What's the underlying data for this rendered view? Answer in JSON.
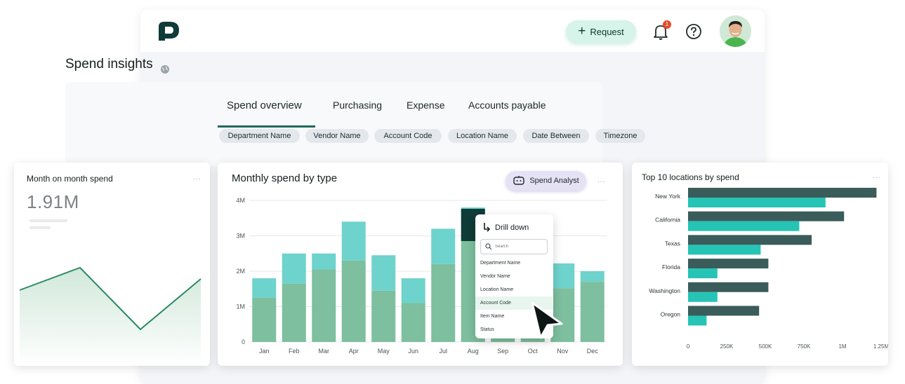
{
  "topbar": {
    "request_label": "Request",
    "notification_count": "1",
    "icons": {
      "logo": "brand-logo-icon",
      "bell": "bell-icon",
      "help": "help-icon",
      "avatar": "user-avatar"
    }
  },
  "sidebar": {
    "icons": [
      "globe-icon",
      "compass-icon",
      "folder-icon",
      "plane-icon"
    ]
  },
  "page": {
    "title": "Spend insights",
    "tabs": [
      "Spend overview",
      "Purchasing",
      "Expense",
      "Accounts payable"
    ],
    "active_tab": "Spend overview",
    "filters": [
      "Department Name",
      "Vendor Name",
      "Account Code",
      "Location Name",
      "Date Between",
      "Timezone"
    ]
  },
  "colors": {
    "accent": "#22685d",
    "bar_bottom": "#7dbf9e",
    "bar_top": "#6ed3cc",
    "hbar_dark": "#3a5c5b",
    "hbar_light": "#25c4b5",
    "line": "#2b8a62"
  },
  "month_on_month": {
    "title": "Month on month spend",
    "value": "1.91M",
    "menu": "..."
  },
  "monthly_spend": {
    "title": "Monthly spend by type",
    "spend_analyst_label": "Spend Analyst",
    "menu": "...",
    "drill": {
      "title": "Drill down",
      "search_placeholder": "Search",
      "options": [
        "Department Name",
        "Vendor Name",
        "Location Name",
        "Account Code",
        "Item Name",
        "Status"
      ],
      "highlighted": "Account Code"
    }
  },
  "top_locations": {
    "title": "Top 10 locations by spend",
    "menu": "..."
  },
  "chart_data": [
    {
      "type": "line",
      "title": "Month on month spend",
      "x": [
        1,
        2,
        3,
        4
      ],
      "values": [
        0.55,
        0.75,
        0.2,
        0.65
      ],
      "normalized": true,
      "fill": "area",
      "axes": "hidden"
    },
    {
      "type": "bar",
      "stacked": true,
      "title": "Monthly spend by type",
      "categories": [
        "Jan",
        "Feb",
        "Mar",
        "Apr",
        "May",
        "Jun",
        "Jul",
        "Aug",
        "Sep",
        "Oct",
        "Nov",
        "Dec"
      ],
      "yticks": [
        "0",
        "1M",
        "2M",
        "3M",
        "4M"
      ],
      "ylim": [
        0,
        4000000
      ],
      "series": [
        {
          "values": [
            1250000,
            1650000,
            2050000,
            2300000,
            1450000,
            1100000,
            2200000,
            2900000,
            1100000,
            1000000,
            1520000,
            1700000
          ]
        },
        {
          "values": [
            550000,
            850000,
            450000,
            1100000,
            1000000,
            700000,
            1000000,
            900000,
            300000,
            300000,
            700000,
            300000
          ]
        }
      ],
      "grid": true,
      "legend": "none"
    },
    {
      "type": "bar",
      "orientation": "horizontal",
      "title": "Top 10 locations by spend",
      "categories": [
        "New York",
        "California",
        "Texas",
        "Florida",
        "Washington",
        "Oregon"
      ],
      "xticks": [
        "0",
        "250K",
        "500K",
        "750K",
        "1M",
        "1.25M"
      ],
      "xlim": [
        0,
        1250000
      ],
      "series": [
        {
          "values": [
            1220000,
            1010000,
            800000,
            520000,
            520000,
            460000
          ]
        },
        {
          "values": [
            890000,
            720000,
            470000,
            190000,
            190000,
            120000
          ]
        }
      ],
      "grid": false,
      "legend": "none"
    }
  ]
}
